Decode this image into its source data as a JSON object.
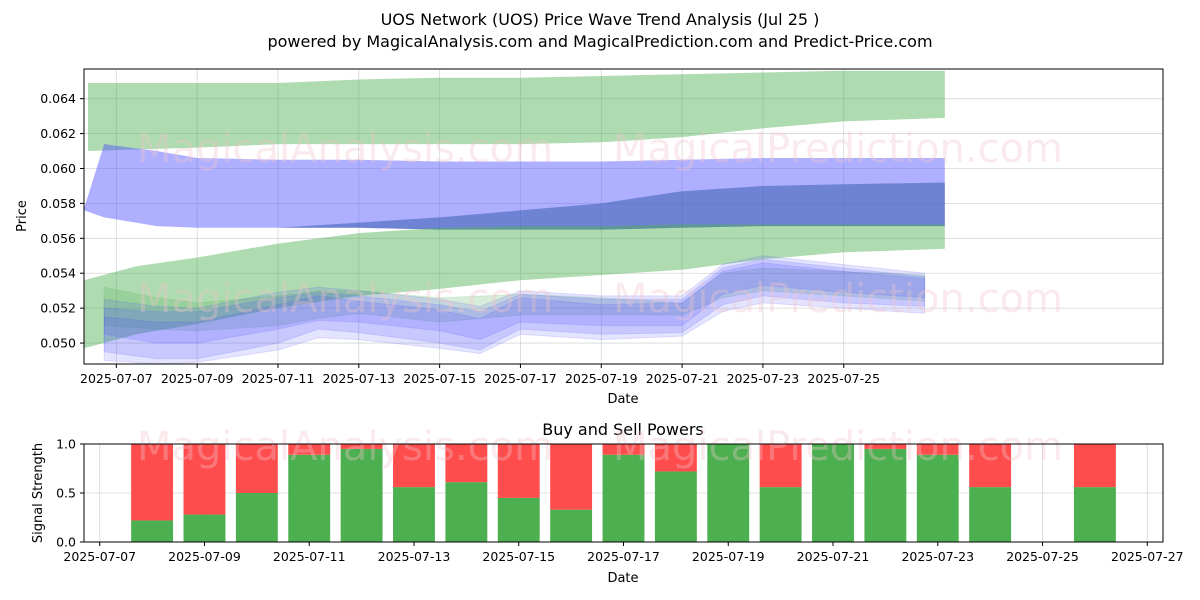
{
  "chart_data": [
    {
      "type": "area",
      "title": "UOS Network (UOS) Price Wave Trend Analysis (Jul 25 )",
      "subtitle": "powered by MagicalAnalysis.com and MagicalPrediction.com and Predict-Price.com",
      "xlabel": "Date",
      "ylabel": "Price",
      "xlim": [
        -0.8,
        25.9
      ],
      "ylim": [
        0.0488,
        0.0657
      ],
      "x_tick_labels": [
        "2025-07-07",
        "2025-07-09",
        "2025-07-11",
        "2025-07-13",
        "2025-07-15",
        "2025-07-17",
        "2025-07-19",
        "2025-07-21",
        "2025-07-23",
        "2025-07-25"
      ],
      "x_tick_pos": [
        0,
        2,
        4,
        6,
        8,
        10,
        12,
        14,
        16,
        18
      ],
      "y_ticks": [
        0.05,
        0.052,
        0.054,
        0.056,
        0.058,
        0.06,
        0.062,
        0.064
      ],
      "y_tick_labels": [
        "0.050",
        "0.052",
        "0.054",
        "0.056",
        "0.058",
        "0.060",
        "0.062",
        "0.064"
      ],
      "grid": true,
      "watermarks": [
        "MagicalAnalysis.com",
        "MagicalPrediction.com"
      ],
      "colors": {
        "green_band": "#4caf50",
        "blue_band": "#4d4dff",
        "blue_dark": "#3a5fb0"
      },
      "bands": [
        {
          "name": "upper-green-band",
          "color": "#4caf50",
          "opacity": 0.45,
          "x": [
            -0.7,
            2,
            4,
            6,
            8,
            10,
            12,
            14,
            16,
            18,
            20.5
          ],
          "upper": [
            0.0649,
            0.0649,
            0.0649,
            0.0651,
            0.0652,
            0.0652,
            0.0653,
            0.0654,
            0.0655,
            0.0656,
            0.0656
          ],
          "lower": [
            0.061,
            0.0612,
            0.0614,
            0.0614,
            0.0614,
            0.0614,
            0.0615,
            0.0618,
            0.0623,
            0.0627,
            0.0629
          ]
        },
        {
          "name": "blue-band",
          "color": "#4d4dff",
          "opacity": 0.45,
          "x": [
            -0.8,
            -0.3,
            1,
            2,
            4,
            6,
            8,
            10,
            12,
            14,
            16,
            18,
            20.5
          ],
          "upper": [
            0.0577,
            0.0614,
            0.061,
            0.0606,
            0.0605,
            0.0605,
            0.0604,
            0.0604,
            0.0604,
            0.0605,
            0.0606,
            0.0606,
            0.0606
          ],
          "lower": [
            0.0576,
            0.0572,
            0.0567,
            0.0566,
            0.0566,
            0.0566,
            0.0565,
            0.0565,
            0.0565,
            0.0566,
            0.0567,
            0.0567,
            0.0567
          ]
        },
        {
          "name": "dark-blue-band",
          "color": "#3a5fb0",
          "opacity": 0.55,
          "x": [
            4,
            6,
            8,
            10,
            12,
            14,
            16,
            18,
            20.5
          ],
          "upper": [
            0.0566,
            0.0569,
            0.0572,
            0.0576,
            0.058,
            0.0587,
            0.059,
            0.0591,
            0.0592
          ],
          "lower": [
            0.0566,
            0.0566,
            0.0565,
            0.0565,
            0.0565,
            0.0566,
            0.0567,
            0.0567,
            0.0567
          ]
        },
        {
          "name": "lower-green-band",
          "color": "#4caf50",
          "opacity": 0.45,
          "x": [
            -0.8,
            0.5,
            2,
            4,
            6,
            8,
            10,
            12,
            14,
            16,
            18,
            20.5
          ],
          "upper": [
            0.0536,
            0.0544,
            0.0549,
            0.0557,
            0.0563,
            0.0566,
            0.0567,
            0.0567,
            0.0568,
            0.0568,
            0.0568,
            0.0568
          ],
          "lower": [
            0.0497,
            0.0505,
            0.0511,
            0.052,
            0.0527,
            0.0531,
            0.0536,
            0.0539,
            0.0542,
            0.0548,
            0.0552,
            0.0554
          ]
        }
      ],
      "wave_bands": [
        {
          "name": "wave-green",
          "color": "#4caf50",
          "opacity": 0.22,
          "x": [
            -0.3,
            1,
            2,
            4,
            5,
            6,
            8,
            10,
            12,
            14,
            15,
            16,
            18,
            20
          ],
          "upper": [
            0.0532,
            0.0526,
            0.0523,
            0.0527,
            0.053,
            0.053,
            0.0526,
            0.0528,
            0.0526,
            0.0523,
            0.054,
            0.0543,
            0.0541,
            0.0539
          ],
          "lower": [
            0.051,
            0.0508,
            0.0507,
            0.051,
            0.0514,
            0.0517,
            0.0512,
            0.0516,
            0.0516,
            0.0516,
            0.0526,
            0.053,
            0.0527,
            0.0524
          ]
        },
        {
          "name": "wave-blue-1",
          "color": "#4d4dff",
          "opacity": 0.18,
          "x": [
            -0.3,
            1,
            2,
            4,
            5,
            6,
            8,
            9,
            10,
            12,
            14,
            15,
            16,
            18,
            20
          ],
          "upper": [
            0.0515,
            0.0512,
            0.0512,
            0.0522,
            0.0527,
            0.0524,
            0.0519,
            0.0514,
            0.0526,
            0.0522,
            0.0523,
            0.0541,
            0.0546,
            0.0541,
            0.0537
          ],
          "lower": [
            0.0495,
            0.0491,
            0.0491,
            0.05,
            0.0508,
            0.0506,
            0.05,
            0.0496,
            0.0508,
            0.0505,
            0.0506,
            0.0522,
            0.0527,
            0.0523,
            0.0521
          ]
        },
        {
          "name": "wave-blue-2",
          "color": "#4d4dff",
          "opacity": 0.18,
          "x": [
            -0.3,
            1,
            2,
            4,
            5,
            6,
            8,
            9,
            10,
            12,
            14,
            15,
            16,
            18,
            20
          ],
          "upper": [
            0.052,
            0.0518,
            0.0518,
            0.0526,
            0.0529,
            0.0527,
            0.0522,
            0.0518,
            0.0528,
            0.0525,
            0.0525,
            0.0543,
            0.0548,
            0.0543,
            0.0538
          ],
          "lower": [
            0.0505,
            0.05,
            0.05,
            0.0508,
            0.0513,
            0.0512,
            0.0507,
            0.0502,
            0.0512,
            0.051,
            0.051,
            0.0528,
            0.0533,
            0.0529,
            0.0526
          ]
        },
        {
          "name": "wave-blue-3",
          "color": "#4d4dff",
          "opacity": 0.15,
          "x": [
            -0.3,
            1,
            2,
            4,
            5,
            6,
            8,
            9,
            10,
            12,
            14,
            15,
            16,
            18,
            20
          ],
          "upper": [
            0.0525,
            0.0521,
            0.052,
            0.0529,
            0.0532,
            0.053,
            0.0525,
            0.0521,
            0.053,
            0.0527,
            0.0527,
            0.0545,
            0.055,
            0.0545,
            0.054
          ],
          "lower": [
            0.049,
            0.0488,
            0.0489,
            0.0496,
            0.0503,
            0.0502,
            0.0497,
            0.0494,
            0.0505,
            0.0502,
            0.0504,
            0.0518,
            0.0523,
            0.052,
            0.0517
          ]
        }
      ]
    },
    {
      "type": "bar",
      "title": "Buy and Sell Powers",
      "xlabel": "Date",
      "ylabel": "Signal Strength",
      "xlim": [
        -0.3,
        20.3
      ],
      "ylim": [
        0,
        1
      ],
      "x_tick_labels": [
        "2025-07-07",
        "2025-07-09",
        "2025-07-11",
        "2025-07-13",
        "2025-07-15",
        "2025-07-17",
        "2025-07-19",
        "2025-07-21",
        "2025-07-23",
        "2025-07-25",
        "2025-07-27"
      ],
      "x_tick_pos": [
        0,
        2,
        4,
        6,
        8,
        10,
        12,
        14,
        16,
        18,
        20
      ],
      "y_ticks": [
        0,
        0.5,
        1
      ],
      "y_tick_labels": [
        "0.0",
        "0.5",
        "1.0"
      ],
      "colors": {
        "buy": "#4caf50",
        "sell": "#ff4d4d"
      },
      "bar_x": [
        1,
        2,
        3,
        4,
        5,
        6,
        7,
        8,
        9,
        10,
        11,
        12,
        13,
        14,
        15,
        16,
        17,
        19
      ],
      "buy": [
        0.22,
        0.28,
        0.5,
        0.89,
        0.95,
        0.56,
        0.61,
        0.45,
        0.33,
        0.89,
        0.72,
        1.0,
        0.56,
        1.0,
        0.95,
        0.89,
        0.56,
        0.56
      ],
      "sell": [
        0.78,
        0.72,
        0.5,
        0.11,
        0.05,
        0.44,
        0.39,
        0.55,
        0.67,
        0.11,
        0.28,
        0.0,
        0.44,
        0.0,
        0.05,
        0.11,
        0.44,
        0.44
      ],
      "watermarks": [
        "MagicalAnalysis.com",
        "MagicalPrediction.com"
      ]
    }
  ]
}
